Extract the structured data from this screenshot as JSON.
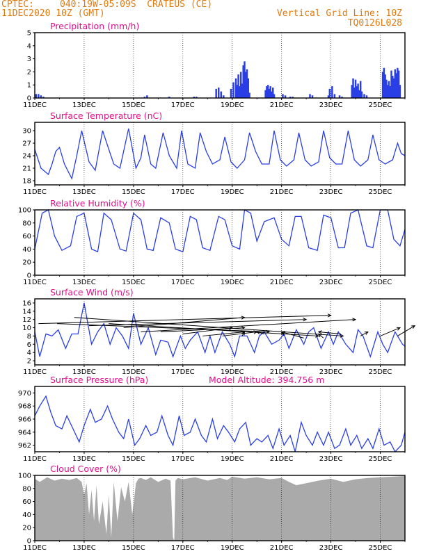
{
  "header": {
    "source": "CPTEC:",
    "location": "040:19W-05:09S  CRATEUS (CE)",
    "date": "11DEC2020 10Z (GMT)",
    "grid_line": "Vertical Grid Line: 10Z",
    "code": "TQ0126L028"
  },
  "colors": {
    "header": "#e07a10",
    "title": "#e0108a",
    "line": "#2a3ee6",
    "cloud": "#aaaaaa",
    "arrow": "#000000"
  },
  "chart_data": [
    {
      "id": "precip",
      "type": "bar",
      "title": "Precipitation (mm/h)",
      "ylim": [
        0,
        5
      ],
      "yticks": [
        0,
        1,
        2,
        3,
        4,
        5
      ],
      "x_tick_labels": [
        "11DEC",
        "13DEC",
        "15DEC",
        "17DEC",
        "19DEC",
        "21DEC",
        "23DEC",
        "25DEC"
      ],
      "x_tick_positions": [
        0,
        2,
        4,
        6,
        8,
        10,
        12,
        14
      ],
      "xlim": [
        0,
        15
      ],
      "x": [
        0.05,
        0.15,
        0.25,
        0.35,
        4.45,
        4.55,
        5.45,
        6.45,
        6.55,
        7.35,
        7.45,
        7.55,
        7.65,
        7.95,
        8.05,
        8.15,
        8.2,
        8.25,
        8.3,
        8.35,
        8.4,
        8.45,
        8.5,
        8.55,
        8.6,
        8.65,
        8.7,
        9.35,
        9.4,
        9.45,
        9.5,
        9.55,
        9.6,
        9.65,
        9.7,
        10.05,
        10.15,
        10.35,
        10.45,
        11.15,
        11.25,
        11.9,
        11.95,
        12.05,
        12.15,
        12.35,
        12.45,
        12.85,
        12.9,
        12.95,
        13.0,
        13.05,
        13.1,
        13.15,
        13.2,
        13.25,
        13.35,
        13.45,
        14.1,
        14.15,
        14.2,
        14.25,
        14.3,
        14.35,
        14.4,
        14.45,
        14.5,
        14.55,
        14.6,
        14.65,
        14.7,
        14.75,
        14.8
      ],
      "values": [
        0.3,
        0.3,
        0.2,
        0.1,
        0.1,
        0.2,
        0.1,
        0.1,
        0.1,
        0.7,
        0.8,
        0.5,
        0.2,
        0.7,
        1.2,
        1.5,
        1.0,
        1.8,
        0.9,
        2.0,
        1.1,
        2.5,
        2.8,
        2.0,
        2.2,
        1.5,
        0.4,
        0.6,
        0.9,
        1.0,
        0.7,
        0.9,
        0.5,
        0.8,
        0.3,
        0.3,
        0.2,
        0.1,
        0.1,
        0.3,
        0.2,
        0.2,
        0.7,
        0.9,
        0.3,
        0.2,
        0.1,
        1.0,
        1.5,
        0.8,
        1.4,
        0.9,
        1.1,
        0.6,
        1.3,
        0.5,
        0.3,
        0.2,
        2.0,
        2.3,
        1.8,
        1.4,
        1.0,
        1.3,
        0.9,
        2.1,
        1.7,
        1.5,
        2.2,
        1.9,
        2.3,
        2.1,
        1.0
      ]
    },
    {
      "id": "temp",
      "type": "line",
      "title": "Surface Temperature (nC)",
      "ylim": [
        17,
        32
      ],
      "yticks": [
        18,
        21,
        24,
        27,
        30
      ],
      "x_tick_labels": [
        "11DEC",
        "13DEC",
        "15DEC",
        "17DEC",
        "19DEC",
        "21DEC",
        "23DEC",
        "25DEC"
      ],
      "x_tick_positions": [
        0,
        2,
        4,
        6,
        8,
        10,
        12,
        14
      ],
      "xlim": [
        0,
        15
      ],
      "x": [
        0,
        0.25,
        0.55,
        0.7,
        0.85,
        1.0,
        1.2,
        1.5,
        1.7,
        1.9,
        2.2,
        2.45,
        2.75,
        3.0,
        3.2,
        3.45,
        3.8,
        4.1,
        4.3,
        4.45,
        4.7,
        4.9,
        5.2,
        5.45,
        5.75,
        5.95,
        6.2,
        6.5,
        6.7,
        6.95,
        7.2,
        7.5,
        7.7,
        7.95,
        8.2,
        8.5,
        8.7,
        8.95,
        9.2,
        9.5,
        9.7,
        9.95,
        10.2,
        10.5,
        10.7,
        10.95,
        11.2,
        11.5,
        11.7,
        11.95,
        12.2,
        12.45,
        12.7,
        12.95,
        13.2,
        13.5,
        13.7,
        13.95,
        14.2,
        14.5,
        14.7,
        14.85,
        15.0
      ],
      "values": [
        25.5,
        21,
        19.5,
        22,
        25,
        26,
        22,
        18.5,
        24,
        30,
        22.5,
        20.5,
        30,
        25.5,
        22,
        21,
        30.5,
        21,
        23.5,
        29,
        22,
        21,
        29.5,
        24,
        21,
        30,
        22,
        21,
        29.5,
        25,
        22,
        23,
        28.5,
        22.5,
        21,
        23,
        29.5,
        25,
        22,
        22,
        30,
        23,
        21.5,
        23,
        29.5,
        23,
        21.5,
        22.5,
        30,
        23.5,
        22,
        22,
        30,
        23,
        21.5,
        23,
        29,
        23,
        22,
        23,
        27,
        24.5,
        24
      ]
    },
    {
      "id": "rh",
      "type": "line",
      "title": "Relative Humidity (%)",
      "ylim": [
        0,
        100
      ],
      "yticks": [
        0,
        20,
        40,
        60,
        80,
        100
      ],
      "x_tick_labels": [
        "11DEC",
        "13DEC",
        "15DEC",
        "17DEC",
        "19DEC",
        "21DEC",
        "23DEC",
        "25DEC"
      ],
      "x_tick_positions": [
        0,
        2,
        4,
        6,
        8,
        10,
        12,
        14
      ],
      "xlim": [
        0,
        15
      ],
      "x": [
        0,
        0.3,
        0.55,
        0.8,
        1.1,
        1.45,
        1.7,
        2.0,
        2.3,
        2.55,
        2.8,
        3.1,
        3.45,
        3.7,
        4.0,
        4.3,
        4.55,
        4.8,
        5.1,
        5.45,
        5.7,
        6.0,
        6.3,
        6.55,
        6.8,
        7.1,
        7.45,
        7.7,
        8.0,
        8.3,
        8.5,
        8.75,
        9.0,
        9.3,
        9.5,
        9.7,
        10.0,
        10.3,
        10.55,
        10.8,
        11.1,
        11.45,
        11.7,
        12.0,
        12.3,
        12.55,
        12.8,
        13.1,
        13.45,
        13.7,
        14.0,
        14.3,
        14.55,
        14.8,
        15.0
      ],
      "values": [
        40,
        95,
        100,
        60,
        38,
        45,
        90,
        95,
        40,
        36,
        95,
        85,
        40,
        37,
        95,
        85,
        40,
        38,
        88,
        80,
        40,
        36,
        90,
        85,
        42,
        38,
        90,
        85,
        45,
        40,
        100,
        95,
        52,
        82,
        85,
        88,
        55,
        45,
        90,
        90,
        42,
        38,
        92,
        88,
        42,
        42,
        95,
        100,
        45,
        42,
        100,
        100,
        55,
        45,
        70
      ]
    },
    {
      "id": "wind",
      "type": "line",
      "title": "Surface Wind (m/s)",
      "ylim": [
        1,
        17
      ],
      "yticks": [
        2,
        4,
        6,
        8,
        10,
        12,
        14,
        16
      ],
      "x_tick_labels": [
        "11DEC",
        "13DEC",
        "15DEC",
        "17DEC",
        "19DEC",
        "21DEC",
        "23DEC",
        "25DEC"
      ],
      "x_tick_positions": [
        0,
        2,
        4,
        6,
        8,
        10,
        12,
        14
      ],
      "xlim": [
        0,
        15
      ],
      "x": [
        0,
        0.2,
        0.45,
        0.7,
        0.95,
        1.25,
        1.5,
        1.75,
        2.0,
        2.3,
        2.55,
        2.8,
        3.05,
        3.3,
        3.55,
        3.8,
        4.0,
        4.3,
        4.6,
        4.9,
        5.1,
        5.4,
        5.6,
        5.9,
        6.1,
        6.3,
        6.6,
        6.9,
        7.1,
        7.3,
        7.6,
        7.9,
        8.1,
        8.3,
        8.6,
        8.9,
        9.1,
        9.3,
        9.6,
        9.9,
        10.1,
        10.3,
        10.6,
        10.9,
        11.1,
        11.3,
        11.6,
        11.9,
        12.1,
        12.3,
        12.6,
        12.9,
        13.1,
        13.3,
        13.6,
        13.9,
        14.1,
        14.3,
        14.6,
        14.9,
        15.0
      ],
      "values": [
        9,
        3,
        8.5,
        8,
        9.5,
        5,
        8.5,
        8.5,
        16,
        6,
        9,
        11,
        6,
        10,
        8,
        5,
        13.5,
        6,
        10,
        3.5,
        7,
        6.5,
        3,
        8,
        5,
        7,
        9,
        4,
        8,
        4,
        9,
        6,
        3,
        8,
        8,
        4,
        8,
        9,
        6,
        7,
        8.5,
        5,
        9.5,
        6,
        9,
        10,
        5,
        9,
        6,
        9,
        6,
        4,
        9.5,
        8,
        3,
        9,
        6,
        4,
        9,
        6,
        5.5
      ],
      "arrows": [
        [
          0.15,
          11,
          12,
          13
        ],
        [
          0.9,
          11,
          9.5,
          9
        ],
        [
          1.6,
          12.5,
          12.5,
          8
        ],
        [
          2.2,
          10.5,
          11,
          12
        ],
        [
          3.0,
          11,
          11.5,
          8
        ],
        [
          3.6,
          10,
          8.5,
          12.5
        ],
        [
          4.3,
          9,
          13,
          12
        ],
        [
          5.1,
          9,
          8.5,
          10
        ],
        [
          6.0,
          8.5,
          8,
          10
        ],
        [
          6.8,
          8,
          8.5,
          9
        ],
        [
          7.6,
          8,
          9,
          9
        ],
        [
          8.4,
          8,
          8.5,
          9
        ],
        [
          9.3,
          8.5,
          9,
          9
        ],
        [
          10.1,
          8,
          10,
          9
        ],
        [
          10.9,
          7.5,
          10,
          9
        ],
        [
          11.7,
          7.5,
          11.5,
          8.5
        ],
        [
          12.4,
          8.5,
          11.5,
          9
        ],
        [
          13.2,
          8,
          13.5,
          9
        ],
        [
          14.0,
          8,
          14.8,
          10
        ],
        [
          14.7,
          8,
          15.4,
          10.5
        ]
      ]
    },
    {
      "id": "pres",
      "type": "line",
      "title": "Surface Pressure (hPa)",
      "extra_label": "Model Altitude: 394.756 m",
      "ylim": [
        961,
        971
      ],
      "yticks": [
        962,
        964,
        966,
        968,
        970
      ],
      "x_tick_labels": [
        "11DEC",
        "13DEC",
        "15DEC",
        "17DEC",
        "19DEC",
        "21DEC",
        "23DEC",
        "25DEC"
      ],
      "x_tick_positions": [
        0,
        2,
        4,
        6,
        8,
        10,
        12,
        14
      ],
      "xlim": [
        0,
        15
      ],
      "x": [
        0,
        0.2,
        0.45,
        0.65,
        0.85,
        1.1,
        1.3,
        1.55,
        1.8,
        2.0,
        2.25,
        2.45,
        2.7,
        2.95,
        3.15,
        3.4,
        3.6,
        3.8,
        4.05,
        4.25,
        4.5,
        4.7,
        4.95,
        5.15,
        5.4,
        5.6,
        5.85,
        6.05,
        6.3,
        6.5,
        6.75,
        6.95,
        7.2,
        7.4,
        7.65,
        7.85,
        8.1,
        8.3,
        8.55,
        8.75,
        9.0,
        9.2,
        9.45,
        9.65,
        9.9,
        10.1,
        10.35,
        10.55,
        10.8,
        11.0,
        11.25,
        11.45,
        11.7,
        11.9,
        12.15,
        12.35,
        12.6,
        12.8,
        13.05,
        13.25,
        13.5,
        13.7,
        13.95,
        14.15,
        14.4,
        14.6,
        14.85,
        15.0
      ],
      "values": [
        966.5,
        968,
        969.5,
        967,
        965,
        964.5,
        966.5,
        964.5,
        962.5,
        965,
        967.5,
        965.5,
        966,
        968,
        966,
        964,
        963,
        966,
        962,
        963,
        965,
        963.5,
        964,
        966.5,
        963.5,
        962,
        966.5,
        963.5,
        964,
        966,
        963.5,
        962.5,
        966,
        963,
        965,
        964,
        962.5,
        964.5,
        965.5,
        962,
        963,
        962.5,
        963.5,
        961.5,
        964.5,
        962,
        963.5,
        961,
        965.5,
        963.5,
        962,
        964,
        962,
        964,
        961.5,
        962,
        964.5,
        962,
        963.5,
        961.5,
        963,
        961.5,
        964.5,
        962,
        962.5,
        961,
        962,
        964
      ]
    },
    {
      "id": "cloud",
      "type": "area",
      "title": "Cloud Cover (%)",
      "ylim": [
        0,
        100
      ],
      "yticks": [
        0,
        20,
        40,
        60,
        80,
        100
      ],
      "x_tick_labels": [
        "11DEC",
        "13DEC",
        "15DEC",
        "17DEC",
        "19DEC",
        "21DEC",
        "23DEC",
        "25DEC"
      ],
      "x_tick_positions": [
        0,
        2,
        4,
        6,
        8,
        10,
        12,
        14
      ],
      "xlim": [
        0,
        15
      ],
      "x": [
        0,
        0.2,
        0.5,
        0.8,
        1.1,
        1.4,
        1.7,
        1.9,
        2.0,
        2.1,
        2.2,
        2.3,
        2.4,
        2.5,
        2.6,
        2.75,
        2.9,
        3.0,
        3.1,
        3.2,
        3.35,
        3.5,
        3.65,
        3.8,
        3.95,
        4.1,
        4.2,
        4.3,
        4.5,
        4.7,
        5.0,
        5.3,
        5.5,
        5.6,
        5.65,
        5.7,
        5.8,
        6.0,
        6.5,
        7.0,
        7.5,
        7.8,
        8.0,
        8.5,
        9.0,
        9.5,
        10.0,
        10.3,
        10.6,
        11.0,
        11.5,
        12.0,
        12.5,
        13.0,
        13.5,
        14.0,
        14.5,
        15.0
      ],
      "values": [
        95,
        90,
        97,
        92,
        95,
        93,
        96,
        90,
        70,
        88,
        40,
        78,
        30,
        85,
        25,
        60,
        10,
        70,
        5,
        90,
        30,
        82,
        60,
        90,
        40,
        88,
        95,
        96,
        93,
        97,
        90,
        95,
        92,
        5,
        0,
        92,
        96,
        94,
        97,
        92,
        96,
        93,
        98,
        95,
        97,
        94,
        96,
        90,
        85,
        88,
        92,
        95,
        90,
        94,
        96,
        97,
        98,
        99
      ]
    }
  ]
}
